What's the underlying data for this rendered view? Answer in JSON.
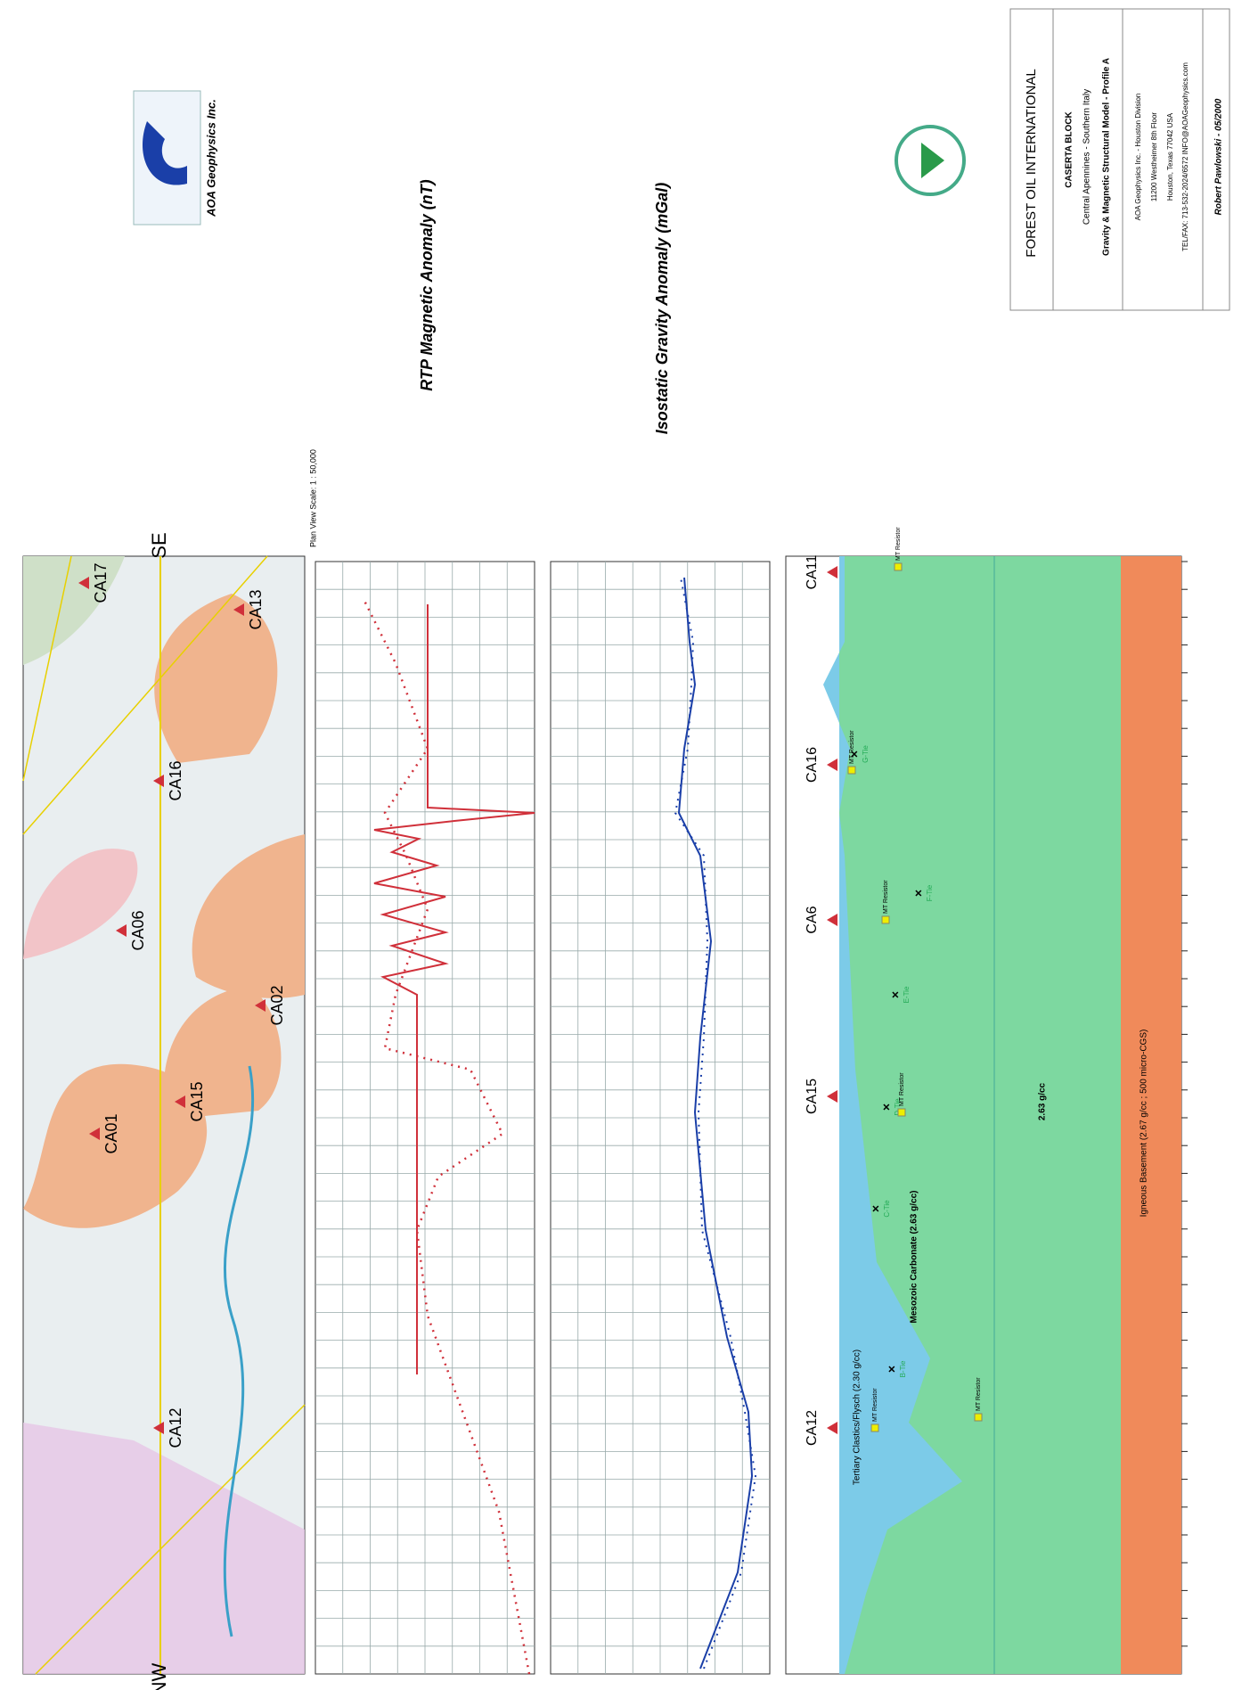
{
  "logo": {
    "company": "AOA Geophysics Inc."
  },
  "profile_titles": {
    "magnetic": "RTP Magnetic Anomaly (nT)",
    "gravity": "Isostatic Gravity Anomaly (mGal)"
  },
  "map": {
    "nw": "NW",
    "se": "SE",
    "scale": "Plan View Scale: 1 : 50,000",
    "stations": [
      "CA12",
      "CA01",
      "CA15",
      "CA02",
      "CA06",
      "CA16",
      "CA13",
      "CA17"
    ]
  },
  "section": {
    "stations": [
      "CA12",
      "CA15",
      "CA6",
      "CA16",
      "CA11"
    ],
    "layers": [
      "Tertiary Clastics/Flysch (2.30 g/cc)",
      "Mesozoic Carbonate (2.63 g/cc)",
      "2.63 g/cc",
      "Igneous Basement (2.67 g/cc ; 500 micro-CGS)"
    ],
    "ties": [
      "B-Tie",
      "C-Tie",
      "D-Tie",
      "E-Tie",
      "F-Tie",
      "G-Tie"
    ],
    "resistor": "MT Resistor"
  },
  "title_block": {
    "company": "FOREST OIL INTERNATIONAL",
    "block": "CASERTA BLOCK",
    "region": "Central Apennines - Southern Italy",
    "model": "Gravity & Magnetic Structural Model - Profile A",
    "contractor": "AOA Geophysics Inc. - Houston Division",
    "street": "11200 Westheimer 8th Floor",
    "city": "Houston, Texas 77042 USA",
    "contact": "TEL/FAX: 713-532-2024/6572   INFO@AOAGeophysics.com",
    "author": "Robert Pawlowski  -  05/2000"
  }
}
